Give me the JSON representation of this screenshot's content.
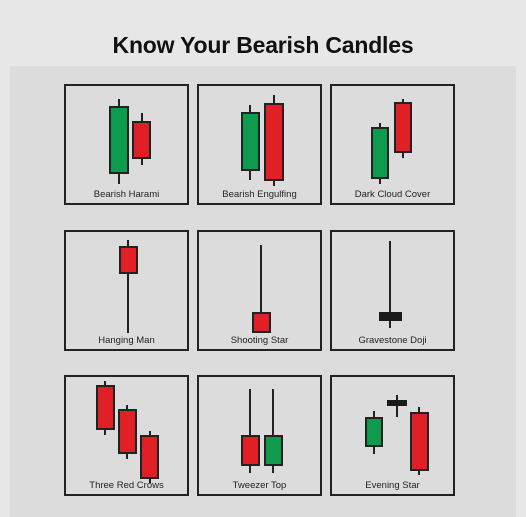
{
  "title": "Know Your Bearish Candles",
  "colors": {
    "bull": "#0f9b4e",
    "bear": "#e11f26",
    "doji": "#1a1a1a",
    "outline": "#222222"
  },
  "patterns": [
    {
      "name": "Bearish Harami"
    },
    {
      "name": "Bearish Engulfing"
    },
    {
      "name": "Dark Cloud Cover"
    },
    {
      "name": "Hanging Man"
    },
    {
      "name": "Shooting Star"
    },
    {
      "name": "Gravestone Doji"
    },
    {
      "name": "Three Red Crows"
    },
    {
      "name": "Tweezer Top"
    },
    {
      "name": "Evening Star"
    }
  ]
}
